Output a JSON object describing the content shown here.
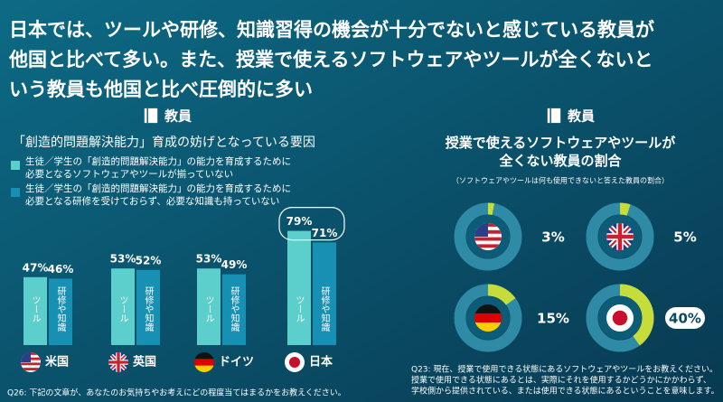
{
  "title": [
    "日本では、ツールや研修、知識習得の機会が十分でないと感じている教員が",
    "他国と比べて多い。また、授業で使えるソフトウェアやツールが全くないと",
    "いう教員も他国と比べ圧倒的に多い"
  ],
  "chart_data": [
    {
      "type": "bar",
      "section_label": "教員",
      "title": "「創造的問題解決能力」育成の妨げとなっている要因",
      "categories": [
        "米国",
        "英国",
        "ドイツ",
        "日本"
      ],
      "series": [
        {
          "name": "生徒／学生の「創造的問題解決能力」の能力を育成するために必要となるソフトウェアやツールが揃っていない",
          "bar_text": "ツール",
          "color": "#5ccfcc",
          "values": [
            47,
            53,
            53,
            79
          ],
          "value_labels": [
            "47%",
            "53%",
            "53%",
            "79%"
          ]
        },
        {
          "name": "生徒／学生の「創造的問題解決能力」の能力を育成するために必要となる研修を受けておらず、必要な知識も持っていない",
          "bar_text": "研修や知識",
          "color": "#1790b4",
          "values": [
            46,
            52,
            49,
            71
          ],
          "value_labels": [
            "46%",
            "52%",
            "49%",
            "71%"
          ]
        }
      ],
      "footnote": "Q26: 下記の文章が、あなたのお気持ちやお考えにどの程度当てはまるかをお教えください。"
    },
    {
      "type": "donut",
      "section_label": "教員",
      "title": "授業で使えるソフトウェアやツールが全くない教員の割合",
      "subtitle": "（ソフトウェアやツールは何も使用できないと答えた教員の割合）",
      "values": [
        3,
        5,
        15,
        40
      ],
      "value_labels": [
        "3%",
        "5%",
        "15%",
        "40%"
      ],
      "color": "#c6dc3a",
      "footnote": [
        "Q23: 現在、授業で使用できる状態にあるソフトウェアやツールをお教えください。",
        "授業で使用できる状態にあるとは、実際にそれを使用するかどうかにかかわらず、",
        "学校側から提供されている、または使用できる状態にあるということを意味します。"
      ]
    }
  ]
}
